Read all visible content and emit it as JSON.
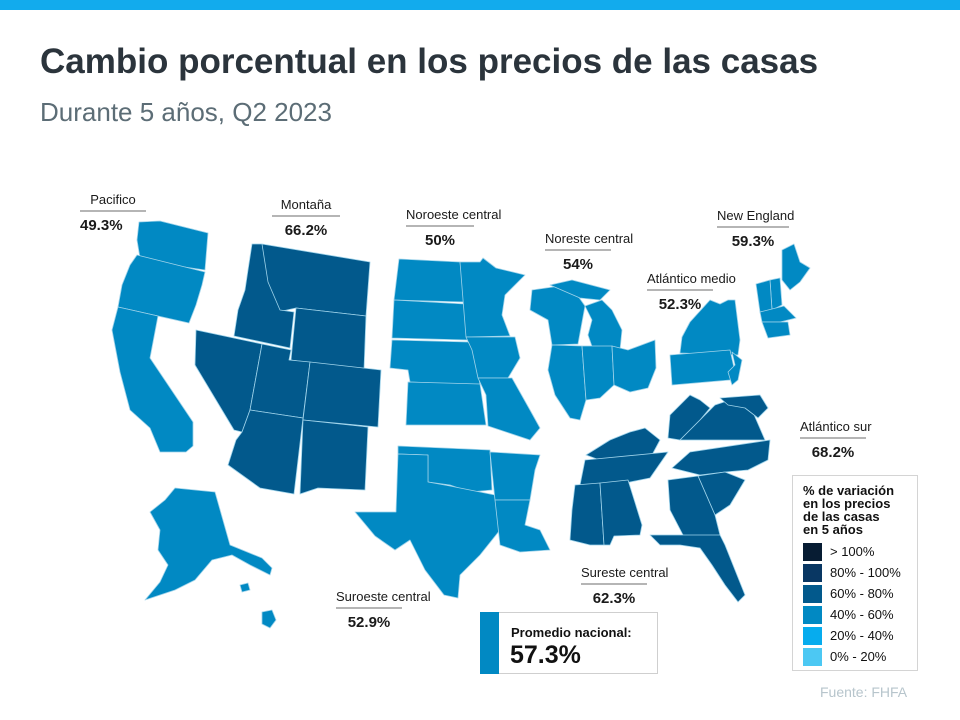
{
  "header": {
    "title": "Cambio porcentual en los precios de las casas",
    "subtitle": "Durante 5 años, Q2 2023"
  },
  "colors": {
    "topbar": "#12abed",
    "band_gt100": "#071c33",
    "band_80_100": "#093763",
    "band_60_80": "#02598c",
    "band_40_60": "#0189c3",
    "band_20_40": "#06acee",
    "band_0_20": "#4cc8f3"
  },
  "regions": [
    {
      "key": "pacific",
      "name": "Pacifico",
      "value": "49.3%",
      "band": "40% - 60%"
    },
    {
      "key": "mountain",
      "name": "Montaña",
      "value": "66.2%",
      "band": "60% - 80%"
    },
    {
      "key": "west_north_central",
      "name": "Noroeste central",
      "value": "50%",
      "band": "40% - 60%"
    },
    {
      "key": "east_north_central",
      "name": "Noreste central",
      "value": "54%",
      "band": "40% - 60%"
    },
    {
      "key": "middle_atlantic",
      "name": "Atlántico medio",
      "value": "52.3%",
      "band": "40% - 60%"
    },
    {
      "key": "new_england",
      "name": "New England",
      "value": "59.3%",
      "band": "40% - 60%"
    },
    {
      "key": "south_atlantic",
      "name": "Atlántico sur",
      "value": "68.2%",
      "band": "60% - 80%"
    },
    {
      "key": "east_south_central",
      "name": "Sureste central",
      "value": "62.3%",
      "band": "60% - 80%"
    },
    {
      "key": "west_south_central",
      "name": "Suroeste central",
      "value": "52.9%",
      "band": "40% - 60%"
    }
  ],
  "national_average": {
    "label": "Promedio nacional:",
    "value": "57.3%"
  },
  "legend": {
    "title_lines": [
      "% de variación",
      "en los precios",
      "de las casas",
      "en 5 años"
    ],
    "items": [
      {
        "label": "> 100%",
        "color": "#071c33"
      },
      {
        "label": "80% - 100%",
        "color": "#093763"
      },
      {
        "label": "60% - 80%",
        "color": "#02598c"
      },
      {
        "label": "40% - 60%",
        "color": "#0189c3"
      },
      {
        "label": "20% - 40%",
        "color": "#06acee"
      },
      {
        "label": "0% - 20%",
        "color": "#4cc8f3"
      }
    ]
  },
  "source": "Fuente:  FHFA"
}
